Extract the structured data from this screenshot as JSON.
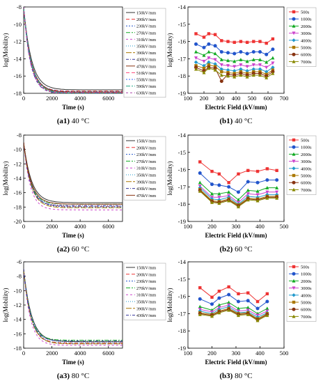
{
  "colors": {
    "palette": [
      "#333333",
      "#ee3333",
      "#2255cc",
      "#11aa22",
      "#cc44cc",
      "#2299cc",
      "#aa7700",
      "#333399",
      "#883311",
      "#ff4477",
      "#3366ff",
      "#22aa88",
      "#aa44aa"
    ]
  },
  "chart_data": [
    {
      "type": "line",
      "key": "a1",
      "caption_bold": "(a1)",
      "caption_rest": " 40 °C",
      "xlabel": "Time (s)",
      "ylabel": "log(Mobility)",
      "xlim": [
        0,
        7000
      ],
      "ylim": [
        -18,
        -8
      ],
      "xticks": [
        0,
        2000,
        4000,
        6000
      ],
      "yticks": [
        -18,
        -16,
        -14,
        -12,
        -10,
        -8
      ],
      "legend": [
        "150kV/mm",
        "200kV/mm",
        "230kV/mm",
        "270kV/mm",
        "310kV/mm",
        "350kV/mm",
        "390kV/mm",
        "430kV/mm",
        "470kV/mm",
        "510kV/mm",
        "550kV/mm",
        "590kV/mm",
        "630kV/mm"
      ],
      "decay": {
        "start": -8,
        "finals": [
          -17.6,
          -17.75,
          -17.8,
          -17.85,
          -17.9,
          -17.95,
          -17.95,
          -18.0,
          -17.85,
          -17.9,
          -17.95,
          -18.0,
          -18.05
        ]
      }
    },
    {
      "type": "line",
      "key": "b1",
      "caption_bold": "(b1)",
      "caption_rest": " 40 °C",
      "xlabel": "Electric Field (kV/mm)",
      "ylabel": "log(Mobility)",
      "xlim": [
        100,
        700
      ],
      "ylim": [
        -19,
        -14
      ],
      "xticks": [
        100,
        200,
        300,
        400,
        500,
        600,
        700
      ],
      "yticks": [
        -19,
        -18,
        -17,
        -16,
        -15,
        -14
      ],
      "x": [
        150,
        200,
        230,
        270,
        310,
        350,
        390,
        430,
        470,
        510,
        550,
        590,
        630
      ],
      "series": [
        {
          "name": "500s",
          "values": [
            -15.55,
            -15.75,
            -15.55,
            -15.6,
            -15.95,
            -16.0,
            -16.05,
            -16.0,
            -16.05,
            -16.0,
            -16.0,
            -16.1,
            -15.85
          ]
        },
        {
          "name": "1000s",
          "values": [
            -16.15,
            -16.35,
            -16.15,
            -16.25,
            -16.6,
            -16.65,
            -16.7,
            -16.6,
            -16.7,
            -16.6,
            -16.6,
            -16.75,
            -16.45
          ]
        },
        {
          "name": "2000s",
          "values": [
            -16.6,
            -16.8,
            -16.6,
            -16.7,
            -17.05,
            -17.1,
            -17.15,
            -17.05,
            -17.15,
            -17.05,
            -17.05,
            -17.2,
            -16.95
          ]
        },
        {
          "name": "3000s",
          "values": [
            -16.95,
            -17.15,
            -16.95,
            -17.05,
            -17.35,
            -17.4,
            -17.45,
            -17.35,
            -17.45,
            -17.35,
            -17.35,
            -17.5,
            -17.25
          ]
        },
        {
          "name": "4000s",
          "values": [
            -17.2,
            -17.4,
            -17.2,
            -17.3,
            -17.6,
            -17.65,
            -17.7,
            -17.6,
            -17.7,
            -17.6,
            -17.6,
            -17.75,
            -17.5
          ]
        },
        {
          "name": "5000s",
          "values": [
            -17.4,
            -17.55,
            -17.35,
            -17.45,
            -17.75,
            -17.8,
            -17.85,
            -17.75,
            -17.85,
            -17.75,
            -17.75,
            -17.9,
            -17.65
          ]
        },
        {
          "name": "6000s",
          "values": [
            -17.5,
            -17.7,
            -17.5,
            -17.55,
            -18.3,
            -17.9,
            -17.95,
            -17.85,
            -17.95,
            -17.85,
            -17.85,
            -18.0,
            -17.75
          ]
        },
        {
          "name": "7000s",
          "values": [
            -17.6,
            -17.8,
            -17.55,
            -17.65,
            -17.95,
            -18.0,
            -18.05,
            -17.95,
            -18.05,
            -17.95,
            -17.95,
            -18.1,
            -17.85
          ]
        }
      ]
    },
    {
      "type": "line",
      "key": "a2",
      "caption_bold": "(a2)",
      "caption_rest": " 60 °C",
      "xlabel": "Time (s)",
      "ylabel": "log(Mobility)",
      "xlim": [
        0,
        7000
      ],
      "ylim": [
        -20,
        -8
      ],
      "xticks": [
        0,
        2000,
        4000,
        6000
      ],
      "yticks": [
        -20,
        -18,
        -16,
        -14,
        -12,
        -10,
        -8
      ],
      "legend": [
        "150kV/mm",
        "200kV/mm",
        "230kV/mm",
        "270kV/mm",
        "310kV/mm",
        "350kV/mm",
        "390kV/mm",
        "430kV/mm",
        "470kV/mm"
      ],
      "decay": {
        "start": -9,
        "finals": [
          -17.4,
          -17.9,
          -18.0,
          -17.6,
          -18.4,
          -17.9,
          -18.1,
          -17.8,
          -17.6
        ]
      }
    },
    {
      "type": "line",
      "key": "b2",
      "caption_bold": "(b2)",
      "caption_rest": " 60 °C",
      "xlabel": "Electric Field (kV/mm)",
      "ylabel": "log(Mobility)",
      "xlim": [
        100,
        500
      ],
      "ylim": [
        -19,
        -14
      ],
      "xticks": [
        100,
        200,
        300,
        400,
        500
      ],
      "yticks": [
        -19,
        -18,
        -17,
        -16,
        -15,
        -14
      ],
      "x": [
        150,
        200,
        230,
        270,
        310,
        350,
        390,
        430,
        470
      ],
      "series": [
        {
          "name": "500s",
          "values": [
            -15.55,
            -16.1,
            -16.25,
            -16.75,
            -16.25,
            -16.05,
            -16.1,
            -15.95,
            -16.05
          ]
        },
        {
          "name": "1000s",
          "values": [
            -16.2,
            -16.85,
            -16.9,
            -17.0,
            -17.3,
            -16.7,
            -16.75,
            -16.6,
            -16.6
          ]
        },
        {
          "name": "2000s",
          "values": [
            -16.75,
            -17.4,
            -17.4,
            -17.3,
            -17.75,
            -17.2,
            -17.25,
            -17.05,
            -17.05
          ]
        },
        {
          "name": "3000s",
          "values": [
            -16.95,
            -17.6,
            -17.6,
            -17.5,
            -17.9,
            -17.4,
            -17.45,
            -17.3,
            -17.3
          ]
        },
        {
          "name": "4000s",
          "values": [
            -17.05,
            -17.7,
            -17.75,
            -17.6,
            -18.0,
            -17.55,
            -17.6,
            -17.45,
            -17.45
          ]
        },
        {
          "name": "5000s",
          "values": [
            -17.15,
            -17.8,
            -17.85,
            -17.7,
            -18.05,
            -17.65,
            -17.7,
            -17.55,
            -17.55
          ]
        },
        {
          "name": "6000s",
          "values": [
            -17.2,
            -17.85,
            -17.9,
            -17.75,
            -18.1,
            -17.7,
            -17.75,
            -17.6,
            -17.6
          ]
        },
        {
          "name": "7000s",
          "values": [
            -17.25,
            -17.9,
            -17.95,
            -17.8,
            -18.15,
            -17.75,
            -17.8,
            -17.65,
            -17.65
          ]
        }
      ]
    },
    {
      "type": "line",
      "key": "a3",
      "caption_bold": "(a3)",
      "caption_rest": " 80 °C",
      "xlabel": "Time (s)",
      "ylabel": "log(Mobility)",
      "xlim": [
        0,
        7000
      ],
      "ylim": [
        -18,
        -6
      ],
      "xticks": [
        0,
        2000,
        4000,
        6000
      ],
      "yticks": [
        -18,
        -16,
        -14,
        -12,
        -10,
        -8,
        -6
      ],
      "legend": [
        "150kV/mm",
        "200kV/mm",
        "230kV/mm",
        "270kV/mm",
        "310kV/mm",
        "350kV/mm",
        "390kV/mm",
        "430kV/mm"
      ],
      "decay": {
        "start": -7,
        "finals": [
          -17.1,
          -17.3,
          -17.4,
          -16.9,
          -17.6,
          -17.2,
          -17.4,
          -17.0
        ]
      }
    },
    {
      "type": "line",
      "key": "b3",
      "caption_bold": "(b3)",
      "caption_rest": " 80 °C",
      "xlabel": "Electric Field (kV/mm)",
      "ylabel": "log(Mobility)",
      "xlim": [
        100,
        500
      ],
      "ylim": [
        -19,
        -14
      ],
      "xticks": [
        100,
        200,
        300,
        400,
        500
      ],
      "yticks": [
        -19,
        -18,
        -17,
        -16,
        -15,
        -14
      ],
      "x": [
        150,
        200,
        230,
        270,
        310,
        350,
        390,
        430
      ],
      "series": [
        {
          "name": "500s",
          "values": [
            -15.5,
            -16.05,
            -15.7,
            -15.45,
            -15.85,
            -15.8,
            -16.3,
            -15.85
          ]
        },
        {
          "name": "1000s",
          "values": [
            -16.15,
            -16.45,
            -16.1,
            -15.9,
            -16.3,
            -16.25,
            -16.7,
            -16.3
          ]
        },
        {
          "name": "2000s",
          "values": [
            -16.6,
            -16.8,
            -16.5,
            -16.35,
            -16.7,
            -16.65,
            -17.0,
            -16.7
          ]
        },
        {
          "name": "3000s",
          "values": [
            -16.75,
            -16.9,
            -16.65,
            -16.5,
            -16.85,
            -16.8,
            -17.1,
            -16.85
          ]
        },
        {
          "name": "4000s",
          "values": [
            -16.85,
            -17.0,
            -16.75,
            -16.6,
            -16.95,
            -16.9,
            -17.2,
            -16.95
          ]
        },
        {
          "name": "5000s",
          "values": [
            -16.95,
            -17.05,
            -16.85,
            -16.7,
            -17.0,
            -16.95,
            -17.3,
            -17.0
          ]
        },
        {
          "name": "6000s",
          "values": [
            -17.0,
            -17.1,
            -16.9,
            -16.75,
            -17.05,
            -17.0,
            -17.35,
            -17.05
          ]
        },
        {
          "name": "7000s",
          "values": [
            -17.05,
            -17.15,
            -16.95,
            -16.8,
            -17.1,
            -17.05,
            -17.4,
            -17.1
          ]
        }
      ]
    }
  ]
}
